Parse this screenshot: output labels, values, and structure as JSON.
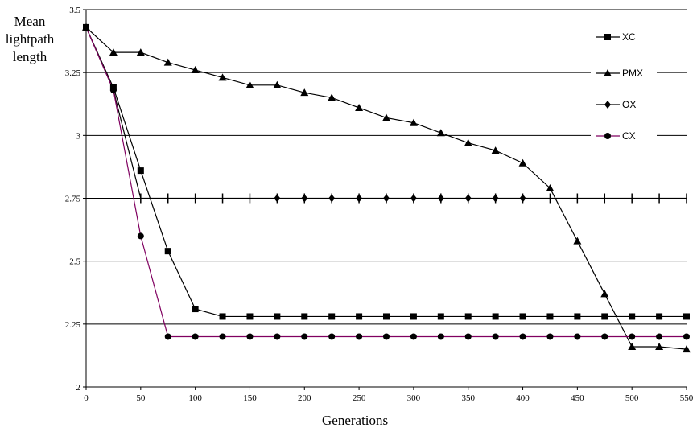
{
  "chart_data": {
    "type": "line",
    "xlabel": "Generations",
    "ylabel": "Mean lightpath length",
    "xlim": [
      0,
      550
    ],
    "ylim": [
      2,
      3.5
    ],
    "xticks": [
      "0",
      "50",
      "100",
      "150",
      "200",
      "250",
      "300",
      "350",
      "400",
      "450",
      "500",
      "550"
    ],
    "yticks": [
      "2",
      "2.25",
      "2.5",
      "2.75",
      "3",
      "3.25",
      "3.5"
    ],
    "grid": "horizontal",
    "legend_position": "right",
    "x": [
      0,
      25,
      50,
      75,
      100,
      125,
      150,
      175,
      200,
      225,
      250,
      275,
      300,
      325,
      350,
      375,
      400,
      425,
      450,
      475,
      500,
      525,
      550
    ],
    "series": [
      {
        "name": "XC",
        "marker": "square",
        "color": "#000000",
        "values": [
          3.43,
          3.19,
          2.86,
          2.54,
          2.31,
          2.28,
          2.28,
          2.28,
          2.28,
          2.28,
          2.28,
          2.28,
          2.28,
          2.28,
          2.28,
          2.28,
          2.28,
          2.28,
          2.28,
          2.28,
          2.28,
          2.28,
          2.28
        ]
      },
      {
        "name": "PMX",
        "marker": "triangle",
        "color": "#000000",
        "values": [
          3.43,
          3.33,
          3.33,
          3.29,
          3.26,
          3.23,
          3.2,
          3.2,
          3.17,
          3.15,
          3.11,
          3.07,
          3.05,
          3.01,
          2.97,
          2.94,
          2.89,
          2.79,
          2.58,
          2.37,
          2.16,
          2.16,
          2.15
        ]
      },
      {
        "name": "OX",
        "marker": "diamond",
        "color": "#000000",
        "values": [
          3.43,
          3.18,
          2.75,
          2.75,
          2.75,
          2.75,
          2.75,
          2.75,
          2.75,
          2.75,
          2.75,
          2.75,
          2.75,
          2.75,
          2.75,
          2.75,
          2.75,
          2.75,
          2.75,
          2.75,
          2.75,
          2.75,
          2.75
        ]
      },
      {
        "name": "CX",
        "marker": "circle",
        "color": "#800060",
        "values": [
          3.43,
          3.18,
          2.6,
          2.2,
          2.2,
          2.2,
          2.2,
          2.2,
          2.2,
          2.2,
          2.2,
          2.2,
          2.2,
          2.2,
          2.2,
          2.2,
          2.2,
          2.2,
          2.2,
          2.2,
          2.2,
          2.2,
          2.2
        ]
      }
    ],
    "ox_visible_markers_x": [
      175,
      200,
      225,
      250,
      275,
      300,
      325,
      350,
      375,
      400
    ]
  }
}
